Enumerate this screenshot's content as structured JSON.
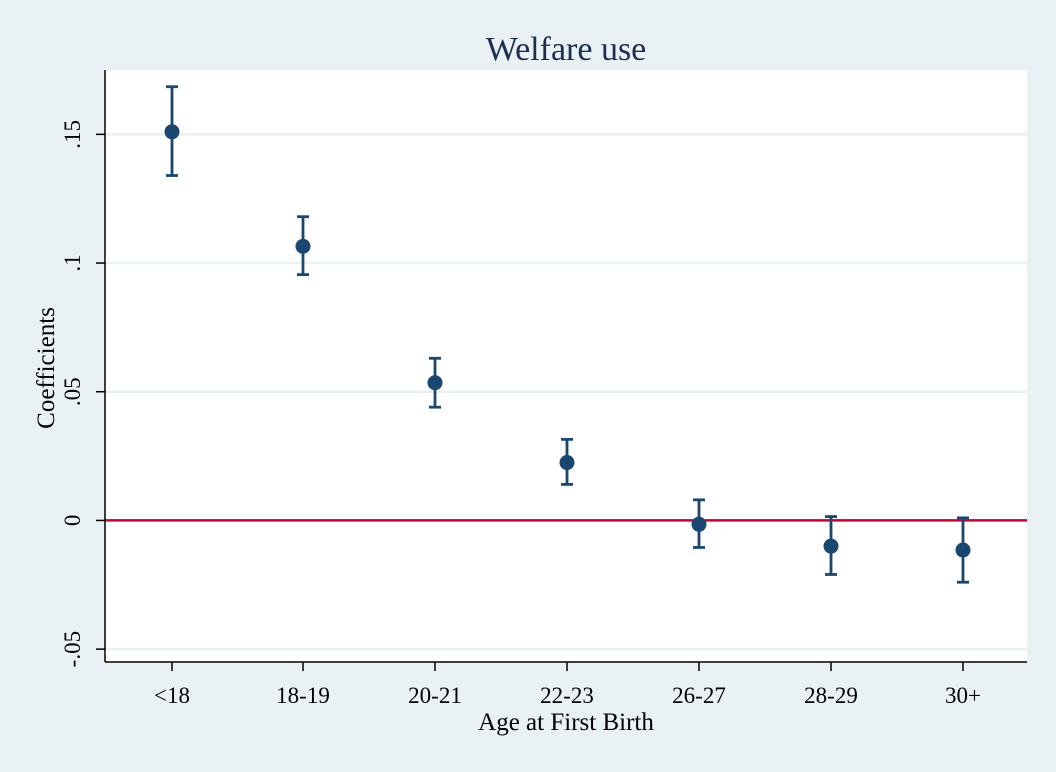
{
  "chart_data": {
    "type": "scatter",
    "title": "Welfare use",
    "xlabel": "Age at First Birth",
    "ylabel": "Coefficients",
    "categories": [
      "<18",
      "18-19",
      "20-21",
      "22-23",
      "26-27",
      "28-29",
      "30+"
    ],
    "values": [
      0.151,
      0.1065,
      0.0535,
      0.0225,
      -0.0015,
      -0.01,
      -0.0115
    ],
    "ci_low": [
      0.134,
      0.0955,
      0.044,
      0.014,
      -0.0105,
      -0.021,
      -0.024
    ],
    "ci_high": [
      0.1685,
      0.118,
      0.063,
      0.0315,
      0.008,
      0.0015,
      0.001
    ],
    "ylim": [
      -0.055,
      0.175
    ],
    "yticks": [
      -0.05,
      0,
      0.05,
      0.1,
      0.15
    ],
    "ytick_labels": [
      "-.05",
      "0",
      ".05",
      ".1",
      ".15"
    ],
    "reference_line": 0,
    "grid": true,
    "colors": {
      "background": "#eaf1f4",
      "plot_bg": "#ffffff",
      "marker": "#1a476f",
      "reference_line": "#c10534",
      "grid": "#eaf1f4",
      "axis": "#000000",
      "title": "#1e2d53"
    }
  }
}
